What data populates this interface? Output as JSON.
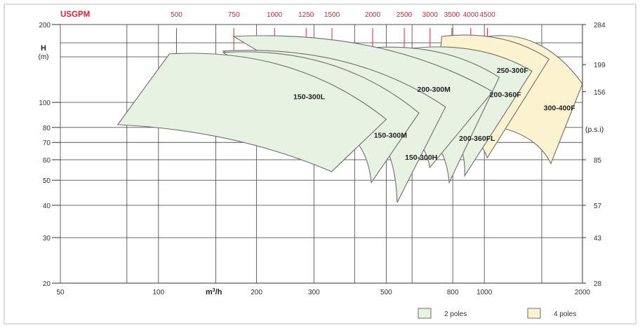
{
  "chart_data": {
    "type": "area",
    "title": "",
    "x_scale": "log",
    "y_scale": "log",
    "xlim": [
      50,
      2000
    ],
    "ylim": [
      20,
      200
    ],
    "xlabel": "m³/h",
    "ylabel": "H",
    "ylabel_unit": "(m)",
    "top_axis_label": "USGPM",
    "right_axis_unit": "(p.s.i)",
    "grid": true,
    "legend_position": "bottom-right",
    "x_ticks": [
      {
        "label": "50",
        "value": 50
      },
      {
        "label": "100",
        "value": 100
      },
      {
        "label": "200",
        "value": 200
      },
      {
        "label": "300",
        "value": 300
      },
      {
        "label": "500",
        "value": 500
      },
      {
        "label": "800",
        "value": 800
      },
      {
        "label": "1000",
        "value": 1000
      },
      {
        "label": "2000",
        "value": 2000
      }
    ],
    "x_grid": [
      50,
      80,
      100,
      150,
      200,
      300,
      400,
      500,
      600,
      800,
      1000,
      1500,
      2000
    ],
    "y_ticks": [
      {
        "label": "200",
        "value": 200
      },
      {
        "label": "100",
        "value": 100
      },
      {
        "label": "80",
        "value": 80
      },
      {
        "label": "70",
        "value": 70
      },
      {
        "label": "60",
        "value": 60
      },
      {
        "label": "50",
        "value": 50
      },
      {
        "label": "40",
        "value": 40
      },
      {
        "label": "30",
        "value": 30
      },
      {
        "label": "20",
        "value": 20
      }
    ],
    "y_grid": [
      20,
      30,
      40,
      50,
      60,
      70,
      80,
      100,
      150,
      170,
      200
    ],
    "top_ticks": [
      {
        "label": "500",
        "m3h": 113.6
      },
      {
        "label": "750",
        "m3h": 170.3
      },
      {
        "label": "1000",
        "m3h": 227.1
      },
      {
        "label": "1250",
        "m3h": 283.9
      },
      {
        "label": "1500",
        "m3h": 340.7
      },
      {
        "label": "2000",
        "m3h": 454.2
      },
      {
        "label": "2500",
        "m3h": 567.8
      },
      {
        "label": "3000",
        "m3h": 681.4
      },
      {
        "label": "3500",
        "m3h": 794.9
      },
      {
        "label": "4000",
        "m3h": 908.5
      },
      {
        "label": "4500",
        "m3h": 1022
      }
    ],
    "right_ticks": [
      {
        "label": "284",
        "value": 200
      },
      {
        "label": "199",
        "value": 140
      },
      {
        "label": "156",
        "value": 110
      },
      {
        "label": "85",
        "value": 60
      },
      {
        "label": "57",
        "value": 40
      },
      {
        "label": "43",
        "value": 30
      },
      {
        "label": "28",
        "value": 20
      }
    ],
    "series": [
      {
        "name": "300-400F",
        "group": "4 poles",
        "left_top": [
          1030,
          180
        ],
        "right_top": [
          2000,
          118
        ],
        "right_bottom": [
          1600,
          58
        ],
        "left_bottom": [
          990,
          82
        ],
        "label_at": [
          1700,
          93
        ]
      },
      {
        "name": "250-300F",
        "group": "4 poles",
        "left_top": [
          740,
          180
        ],
        "right_top": [
          1580,
          147
        ],
        "right_bottom": [
          1020,
          61
        ],
        "left_bottom": [
          700,
          82
        ],
        "label_at": [
          1220,
          130
        ]
      },
      {
        "name": "200-360F",
        "group": "2 poles",
        "left_top": [
          600,
          162
        ],
        "right_top": [
          1400,
          132
        ],
        "right_bottom": [
          870,
          52
        ],
        "left_bottom": [
          680,
          82
        ],
        "label_at": [
          1160,
          105
        ]
      },
      {
        "name": "200-360FL",
        "group": "2 poles",
        "left_top": [
          430,
          162
        ],
        "right_top": [
          1110,
          125
        ],
        "right_bottom": [
          780,
          49
        ],
        "left_bottom": [
          560,
          82
        ],
        "label_at": [
          950,
          71
        ]
      },
      {
        "name": "200-300M",
        "group": "2 poles",
        "left_top": [
          170,
          180
        ],
        "right_top": [
          1060,
          110
        ],
        "right_bottom": [
          680,
          56
        ],
        "left_bottom": [
          480,
          82
        ],
        "label_at": [
          700,
          110
        ]
      },
      {
        "name": "150-300H",
        "group": "2 poles",
        "left_top": [
          158,
          158
        ],
        "right_top": [
          760,
          96
        ],
        "right_bottom": [
          540,
          41
        ],
        "left_bottom": [
          400,
          82
        ],
        "label_at": [
          640,
          60
        ]
      },
      {
        "name": "150-300M",
        "group": "2 poles",
        "left_top": [
          158,
          156
        ],
        "right_top": [
          630,
          91
        ],
        "right_bottom": [
          450,
          49
        ],
        "left_bottom": [
          320,
          82
        ],
        "label_at": [
          515,
          73
        ]
      },
      {
        "name": "150-300L",
        "group": "2 poles",
        "left_top": [
          108,
          154
        ],
        "right_top": [
          500,
          86
        ],
        "right_bottom": [
          340,
          54
        ],
        "left_bottom": [
          75,
          82
        ],
        "label_at": [
          290,
          103
        ]
      }
    ]
  },
  "legend": [
    {
      "label": "2 poles",
      "color": "#e7f2e3"
    },
    {
      "label": "4 poles",
      "color": "#fbf3cf"
    }
  ],
  "colors": {
    "two_pole_fill": "#e7f2e3",
    "four_pole_fill": "#fbf3cf",
    "outline": "#6e6e6e",
    "accent_red": "#d9233a",
    "grid": "#555555",
    "plot_border": "#bdbdbd",
    "background": "#ffffff"
  }
}
